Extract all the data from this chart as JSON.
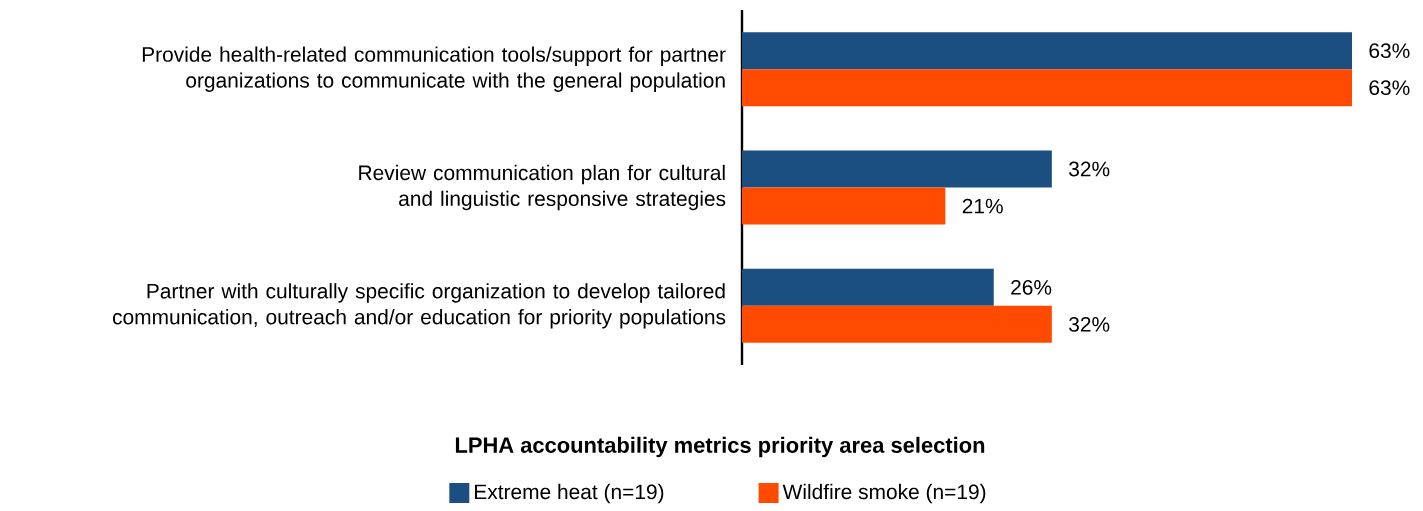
{
  "chart_data": {
    "type": "bar",
    "orientation": "horizontal",
    "legend_title": "LPHA accountability metrics priority area selection",
    "legend": "bottom",
    "categories": [
      "Provide health-related communication tools/support for partner organizations to communicate with the general population",
      "Review communication plan for cultural and linguistic responsive strategies",
      "Partner with culturally specific organization to develop tailored communication, outreach and/or education for priority populations"
    ],
    "series": [
      {
        "name": "Extreme heat (n=19)",
        "color": "#1b4f82",
        "values": [
          63,
          32,
          26
        ],
        "value_labels": [
          "63%",
          "32%",
          "26%"
        ]
      },
      {
        "name": "Wildfire smoke (n=19)",
        "color": "#ff4a00",
        "values": [
          63,
          21,
          32
        ],
        "value_labels": [
          "63%",
          "21%",
          "32%"
        ]
      }
    ]
  }
}
